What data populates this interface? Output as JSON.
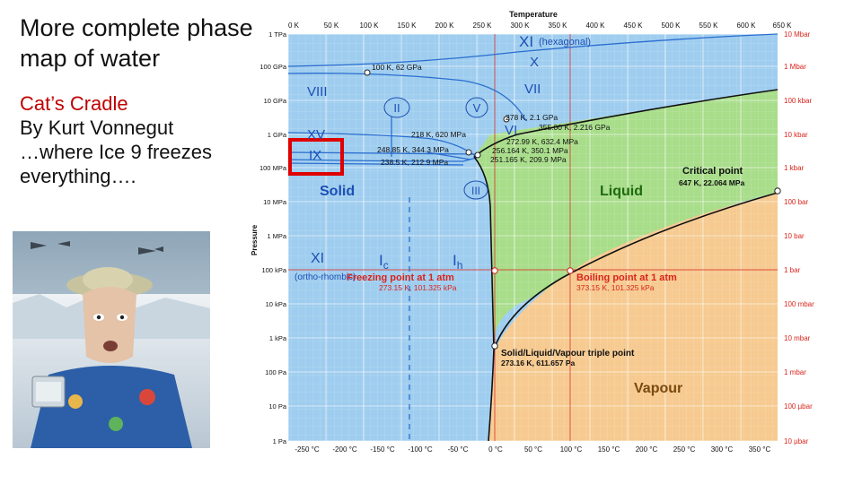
{
  "slide": {
    "title": "More complete phase map of water",
    "subtitle_lines": [
      "Cat’s Cradle",
      "By Kurt Vonnegut",
      "…where Ice 9 freezes",
      "everything…."
    ]
  },
  "phase_map": {
    "top_axis_title": "Temperature",
    "left_axis_title": "Pressure",
    "top_ticks": [
      "0 K",
      "50 K",
      "100 K",
      "150 K",
      "200 K",
      "250 K",
      "300 K",
      "350 K",
      "400 K",
      "450 K",
      "500 K",
      "550 K",
      "600 K",
      "650 K"
    ],
    "bottom_ticks": [
      "-250 °C",
      "-200 °C",
      "-150 °C",
      "-100 °C",
      "-50 °C",
      "0 °C",
      "50 °C",
      "100 °C",
      "150 °C",
      "200 °C",
      "250 °C",
      "300 °C",
      "350 °C"
    ],
    "left_ticks": [
      "1 TPa",
      "100 GPa",
      "10 GPa",
      "1 GPa",
      "100 MPa",
      "10 MPa",
      "1 MPa",
      "100 kPa",
      "10 kPa",
      "1 kPa",
      "100 Pa",
      "10 Pa",
      "1 Pa"
    ],
    "right_ticks": [
      "10 Mbar",
      "1 Mbar",
      "100 kbar",
      "10 kbar",
      "1 kbar",
      "100 bar",
      "10 bar",
      "1 bar",
      "100 mbar",
      "10 mbar",
      "1 mbar",
      "100 µbar",
      "10 µbar"
    ],
    "phases": {
      "xi_hex": "XI",
      "xi_hex_note": "(hexagonal)",
      "x": "X",
      "viii": "VIII",
      "vii": "VII",
      "ii": "II",
      "v": "V",
      "xv": "XV",
      "vi": "VI",
      "ix": "IX",
      "iii": "III",
      "solid": "Solid",
      "liquid": "Liquid",
      "vapour": "Vapour",
      "xi_ortho": "XI",
      "xi_ortho_note": "(ortho-rhombic)",
      "ic_main": "I",
      "ic_sub": "c",
      "ih_main": "I",
      "ih_sub": "h"
    },
    "points": {
      "p100k": "100 K, 62 GPa",
      "p278k": "278 K, 2.1 GPa",
      "p355k": "355.00 K, 2.216 GPa",
      "p218k": "218 K, 620 MPa",
      "p272k": "272.99 K, 632.4 MPa",
      "p248k": "248.85 K, 344.3 MPa",
      "p256k": "256.164 K, 350.1 MPa",
      "p238k": "238.5 K, 212.9 MPa",
      "p251k": "251.165 K, 209.9 MPa",
      "critical_title": "Critical point",
      "critical_value": "647 K, 22.064 MPa",
      "freezing_title": "Freezing point at 1 atm",
      "freezing_value": "273.15 K, 101.325 kPa",
      "boiling_title": "Boiling point at 1 atm",
      "boiling_value": "373.15 K, 101.325 kPa",
      "triple_title": "Solid/Liquid/Vapour triple point",
      "triple_value": "273.16 K, 611.657 Pa"
    },
    "colors": {
      "solid": "#9fcdef",
      "liquid": "#a8dd8a",
      "vapour": "#f6ca90",
      "highlight": "#e00000",
      "axis_red": "#d9241c"
    }
  }
}
